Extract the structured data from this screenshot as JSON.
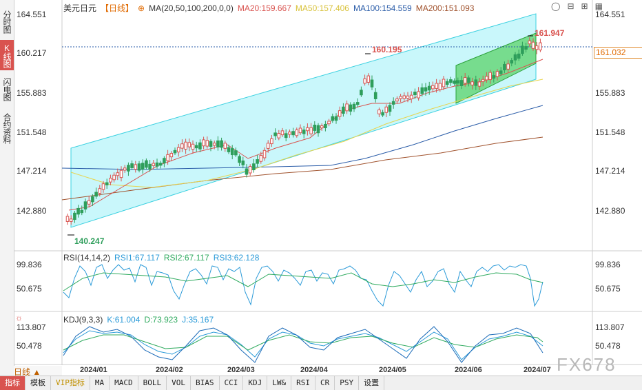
{
  "sidebar": {
    "tabs": [
      {
        "label": "分时图",
        "active": false
      },
      {
        "label": "K线图",
        "active": true
      },
      {
        "label": "闪电图",
        "active": false
      },
      {
        "label": "合约资料",
        "active": false
      }
    ]
  },
  "main_chart": {
    "symbol": "美元日元",
    "period": "【日线】",
    "ma_label": "MA(20,50,100,200,0,0)",
    "ma20": "MA20:159.667",
    "ma50": "MA50:157.406",
    "ma100": "MA100:154.559",
    "ma200": "MA200:151.093",
    "y_ticks": [
      "164.551",
      "160.217",
      "155.883",
      "151.548",
      "147.214",
      "142.880"
    ],
    "high_marker": "161.947",
    "mid_marker": "160.195",
    "low_marker": "140.247",
    "current_price": "161.032",
    "colors": {
      "ma20": "#d9534f",
      "ma50": "#e8d44d",
      "ma100": "#2a5ca8",
      "ma200": "#a0522d",
      "up": "#d9534f",
      "down": "#2e9e5b",
      "channel": "#5ee6f0",
      "box": "#44cc44"
    }
  },
  "rsi": {
    "title": "RSI(14,14,2)",
    "rsi1": "RSI1:67.117",
    "rsi2": "RSI2:67.117",
    "rsi3": "RSI3:62.128",
    "y_ticks": [
      "99.836",
      "50.675"
    ]
  },
  "kdj": {
    "title": "KDJ(9,3,3)",
    "k": "K:61.004",
    "d": "D:73.923",
    "j": "J:35.167",
    "y_ticks": [
      "113.807",
      "50.478"
    ]
  },
  "x_axis": [
    "2024/01",
    "2024/02",
    "2024/03",
    "2024/04",
    "2024/05",
    "2024/06",
    "2024/07"
  ],
  "period_selector": "日线 ▲",
  "watermark": "FX678",
  "bottom_tabs": [
    "指标",
    "模板",
    "VIP指标",
    "MA",
    "MACD",
    "BOLL",
    "VOL",
    "BIAS",
    "CCI",
    "KDJ",
    "LW&",
    "RSI",
    "CR",
    "PSY",
    "设置"
  ]
}
